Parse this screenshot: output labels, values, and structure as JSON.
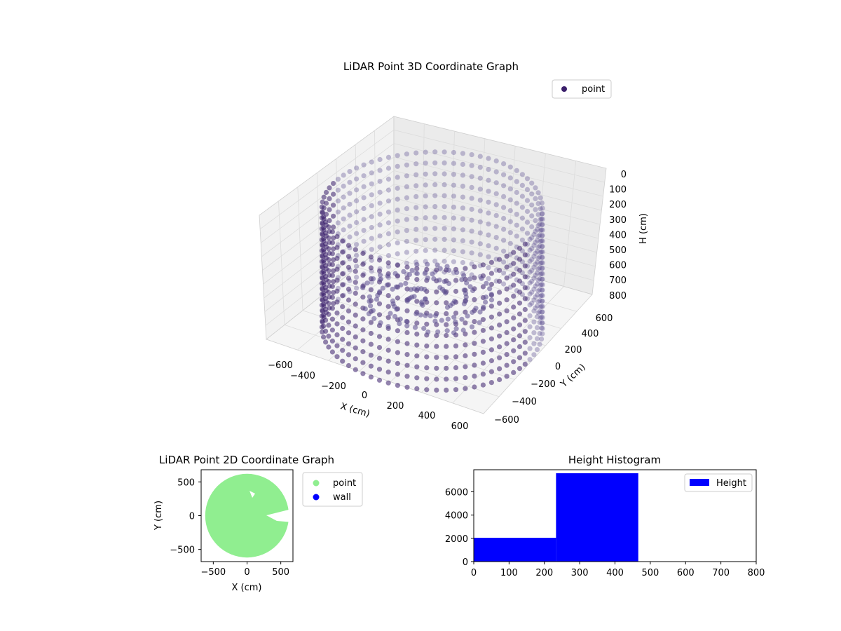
{
  "colors": {
    "point3d": "#3b1f6b",
    "point3d_light": "#5a4a8e",
    "point2d": "#90ee90",
    "wall": "#0000ff",
    "hist": "#0000ff",
    "pane": "#f2f2f2",
    "grid": "#d0d0d0"
  },
  "chart_data": [
    {
      "type": "scatter",
      "projection": "3d",
      "title": "LiDAR Point 3D Coordinate Graph",
      "xlabel": "X (cm)",
      "ylabel": "Y (cm)",
      "zlabel": "H (cm)",
      "xlim": [
        -650,
        650
      ],
      "ylim": [
        -650,
        650
      ],
      "zlim": [
        800,
        0
      ],
      "x_ticks": [
        "−600",
        "−400",
        "−200",
        "0",
        "200",
        "400",
        "600"
      ],
      "y_ticks": [
        "−600",
        "−400",
        "−200",
        "0",
        "200",
        "400",
        "600"
      ],
      "z_ticks": [
        "0",
        "100",
        "200",
        "300",
        "400",
        "500",
        "600",
        "700",
        "800"
      ],
      "grid": true,
      "legend": {
        "placement": "top-right",
        "entries": [
          "point"
        ]
      },
      "series": [
        {
          "name": "point",
          "shape": "cylindrical wall of points around the scanner, radius about 600 cm, heights 0–800 cm, with a scattered cluster near the center",
          "wall_radius": 600,
          "height_range": [
            0,
            800
          ]
        }
      ]
    },
    {
      "type": "scatter",
      "title": "LiDAR Point 2D Coordinate Graph",
      "xlabel": "X (cm)",
      "ylabel": "Y (cm)",
      "xlim": [
        -680,
        680
      ],
      "ylim": [
        -680,
        680
      ],
      "x_ticks": [
        "−500",
        "0",
        "500"
      ],
      "y_ticks": [
        "500",
        "0",
        "−500"
      ],
      "legend": {
        "placement": "outside-right",
        "entries": [
          "point",
          "wall"
        ]
      },
      "series": [
        {
          "name": "point",
          "shape": "filled disc, radius about 620 cm, with a notch on the right side",
          "radius": 620
        },
        {
          "name": "wall",
          "points": []
        }
      ]
    },
    {
      "type": "bar",
      "title": "Height Histogram",
      "xlabel": "",
      "ylabel": "",
      "xlim": [
        0,
        800
      ],
      "ylim": [
        0,
        7900
      ],
      "x_ticks": [
        "0",
        "100",
        "200",
        "300",
        "400",
        "500",
        "600",
        "700",
        "800"
      ],
      "y_ticks": [
        "0",
        "2000",
        "4000",
        "6000"
      ],
      "legend": {
        "placement": "top-right",
        "entries": [
          "Height"
        ]
      },
      "bins": [
        {
          "start": 0,
          "end": 233,
          "count": 2050
        },
        {
          "start": 233,
          "end": 466,
          "count": 7600
        },
        {
          "start": 466,
          "end": 800,
          "count": 0
        }
      ]
    }
  ]
}
